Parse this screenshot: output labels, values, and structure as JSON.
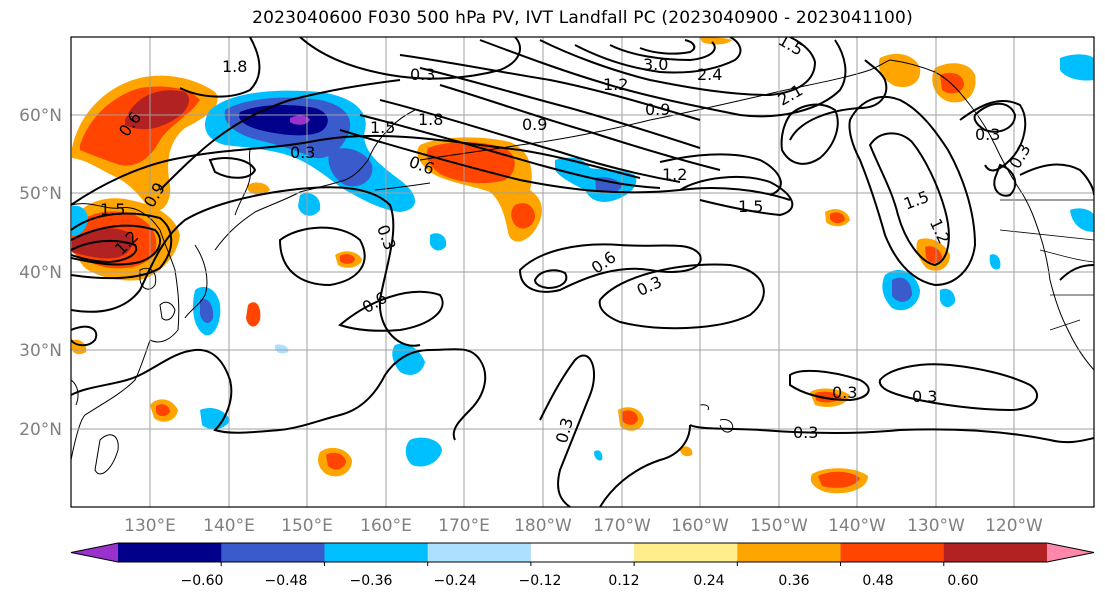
{
  "title": "2023040600 F030 500 hPa PV, IVT Landfall PC (2023040900 - 2023041100)",
  "lat_labels": [
    "60°N",
    "50°N",
    "40°N",
    "30°N",
    "20°N"
  ],
  "lon_labels": [
    "130°E",
    "140°E",
    "150°E",
    "160°E",
    "170°E",
    "180°W",
    "170°W",
    "160°W",
    "150°W",
    "140°W",
    "130°W",
    "120°W"
  ],
  "contour_labels": [
    "1.8",
    "0.3",
    "0.6",
    "1.5",
    "0.9",
    "1.2",
    "0.3",
    "1.5",
    "0.3",
    "0.6",
    "0.6",
    "0.3",
    "1.2",
    "0.9",
    "1.8",
    "0.9",
    "2.1",
    "1.5",
    "1.2",
    "1.5",
    "0.3",
    "0.3",
    "0.3",
    "0.3",
    "0.3",
    "0.6",
    "3.0",
    "2.4",
    "0.3",
    "1.5",
    "1.2"
  ],
  "colorbar": {
    "colors": [
      "#9932CC",
      "#00008B",
      "#3A5BCB",
      "#00BFFF",
      "#ADDFFF",
      "#FFFFFF",
      "#FFEC8B",
      "#FFA500",
      "#FF4500",
      "#B22222",
      "#FF88AA"
    ],
    "tick_labels": [
      "−0.60",
      "−0.48",
      "−0.36",
      "−0.24",
      "−0.12",
      "0.12",
      "0.24",
      "0.36",
      "0.48",
      "0.60"
    ]
  },
  "colors": {
    "contour": "#000000",
    "grid": "#a0a0a0",
    "axis_label": "#808080",
    "coast": "#000000"
  }
}
